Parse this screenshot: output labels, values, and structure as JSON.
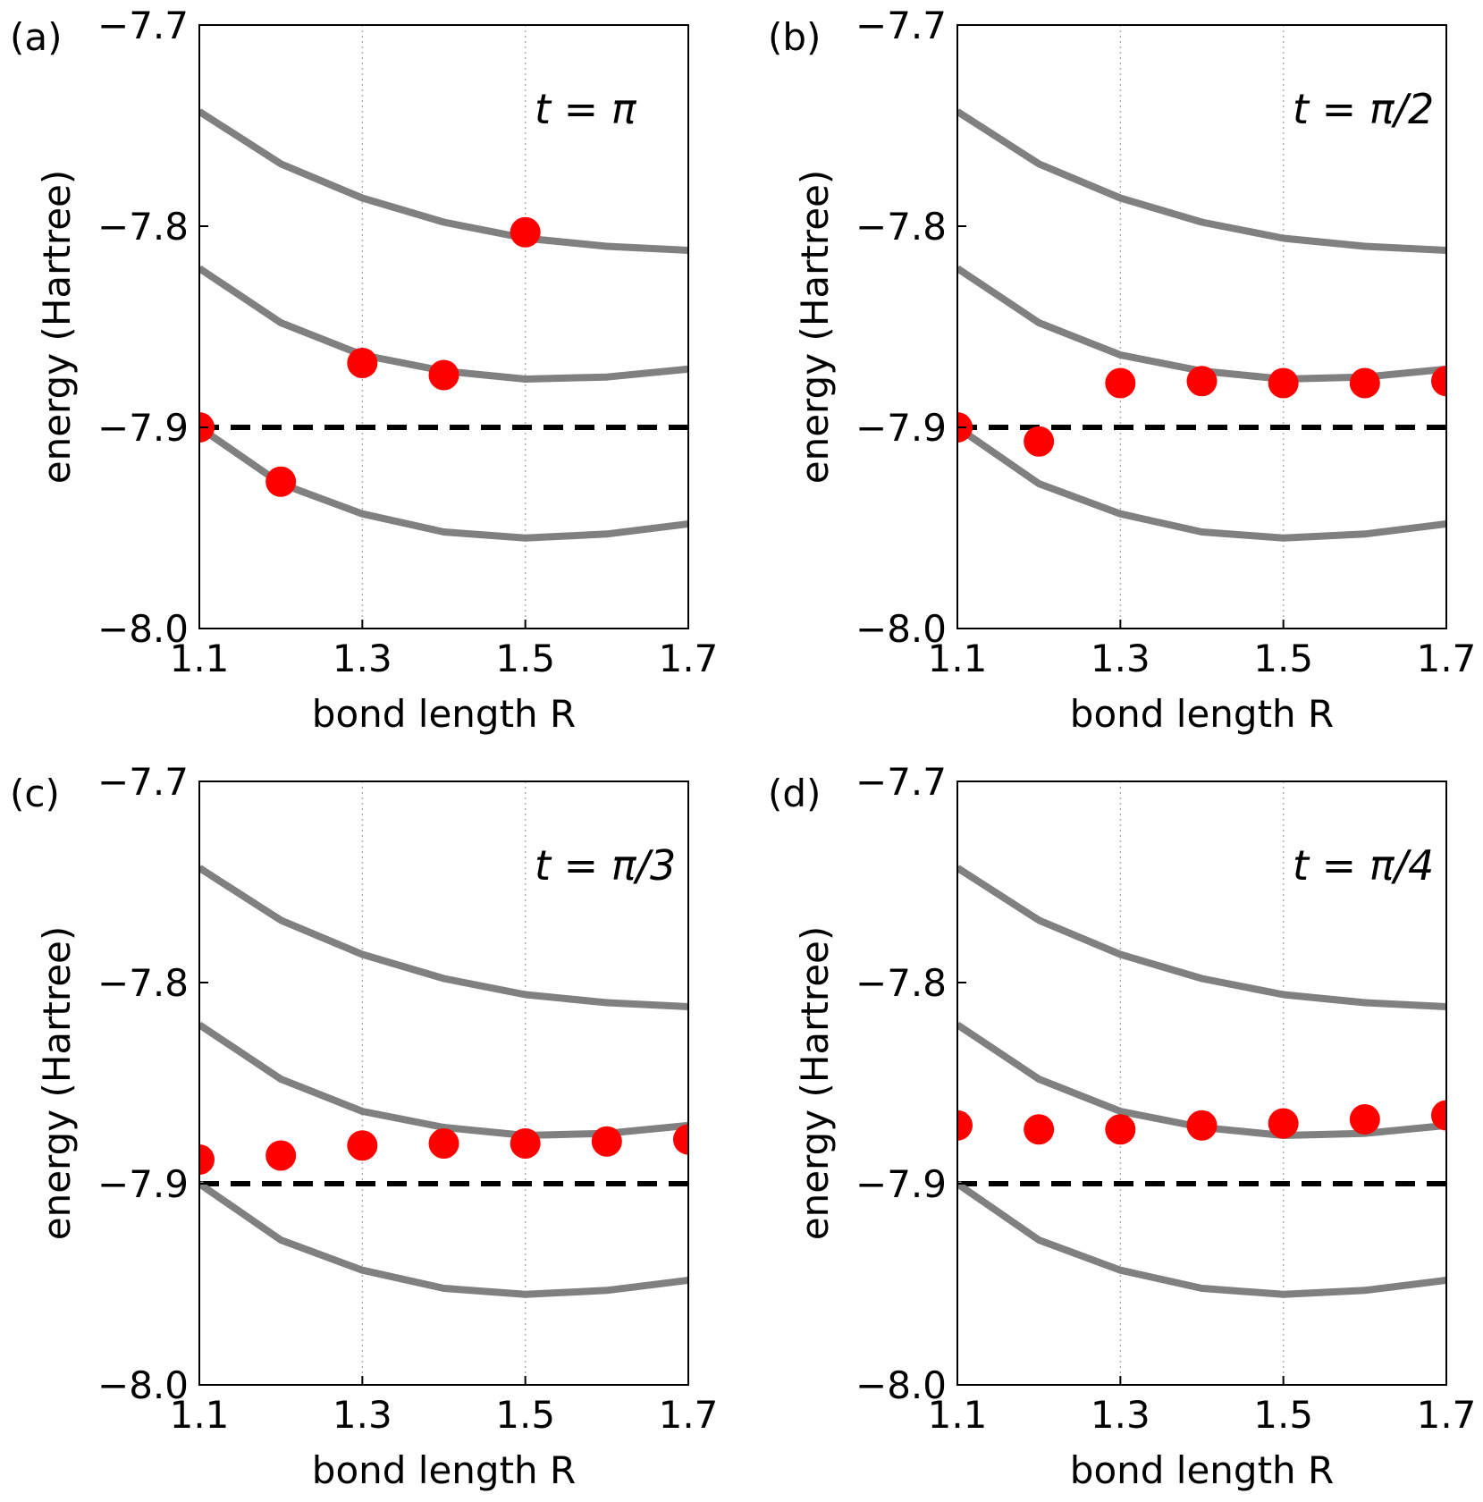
{
  "figure": {
    "colors": {
      "curve": "#808080",
      "points": "#ff0000",
      "reference": "#000000",
      "grid": "#b0b0b0"
    }
  },
  "chart_data": [
    {
      "type": "line",
      "panel_label": "(a)",
      "annotation": "t = π",
      "xlabel": "bond length R",
      "ylabel": "energy (Hartree)",
      "xlim": [
        1.1,
        1.7
      ],
      "ylim": [
        -8.0,
        -7.7
      ],
      "xticks": [
        "1.1",
        "1.3",
        "1.5",
        "1.7"
      ],
      "yticks": [
        "−7.7",
        "−7.8",
        "−7.9",
        "−8.0"
      ],
      "x_gridlines": [
        1.1,
        1.3,
        1.5,
        1.7
      ],
      "reference_line_y": -7.9,
      "x": [
        1.1,
        1.2,
        1.3,
        1.4,
        1.5,
        1.6,
        1.7
      ],
      "series": [
        {
          "values": [
            -7.743,
            -7.769,
            -7.786,
            -7.798,
            -7.806,
            -7.81,
            -7.812
          ]
        },
        {
          "values": [
            -7.821,
            -7.848,
            -7.864,
            -7.872,
            -7.876,
            -7.875,
            -7.871
          ]
        },
        {
          "values": [
            -7.9,
            -7.928,
            -7.943,
            -7.952,
            -7.955,
            -7.953,
            -7.948
          ]
        }
      ],
      "points": {
        "x": [
          1.1,
          1.2,
          1.3,
          1.4,
          1.5
        ],
        "y": [
          -7.9,
          -7.927,
          -7.868,
          -7.874,
          -7.803
        ]
      }
    },
    {
      "type": "line",
      "panel_label": "(b)",
      "annotation": "t = π/2",
      "xlabel": "bond length R",
      "ylabel": "energy (Hartree)",
      "xlim": [
        1.1,
        1.7
      ],
      "ylim": [
        -8.0,
        -7.7
      ],
      "xticks": [
        "1.1",
        "1.3",
        "1.5",
        "1.7"
      ],
      "yticks": [
        "−7.7",
        "−7.8",
        "−7.9",
        "−8.0"
      ],
      "x_gridlines": [
        1.1,
        1.3,
        1.5,
        1.7
      ],
      "reference_line_y": -7.9,
      "x": [
        1.1,
        1.2,
        1.3,
        1.4,
        1.5,
        1.6,
        1.7
      ],
      "series": [
        {
          "values": [
            -7.743,
            -7.769,
            -7.786,
            -7.798,
            -7.806,
            -7.81,
            -7.812
          ]
        },
        {
          "values": [
            -7.821,
            -7.848,
            -7.864,
            -7.872,
            -7.876,
            -7.875,
            -7.871
          ]
        },
        {
          "values": [
            -7.9,
            -7.928,
            -7.943,
            -7.952,
            -7.955,
            -7.953,
            -7.948
          ]
        }
      ],
      "points": {
        "x": [
          1.1,
          1.2,
          1.3,
          1.4,
          1.5,
          1.6,
          1.7
        ],
        "y": [
          -7.9,
          -7.907,
          -7.878,
          -7.877,
          -7.878,
          -7.878,
          -7.877
        ]
      }
    },
    {
      "type": "line",
      "panel_label": "(c)",
      "annotation": "t = π/3",
      "xlabel": "bond length R",
      "ylabel": "energy (Hartree)",
      "xlim": [
        1.1,
        1.7
      ],
      "ylim": [
        -8.0,
        -7.7
      ],
      "xticks": [
        "1.1",
        "1.3",
        "1.5",
        "1.7"
      ],
      "yticks": [
        "−7.7",
        "−7.8",
        "−7.9",
        "−8.0"
      ],
      "x_gridlines": [
        1.1,
        1.3,
        1.5,
        1.7
      ],
      "reference_line_y": -7.9,
      "x": [
        1.1,
        1.2,
        1.3,
        1.4,
        1.5,
        1.6,
        1.7
      ],
      "series": [
        {
          "values": [
            -7.743,
            -7.769,
            -7.786,
            -7.798,
            -7.806,
            -7.81,
            -7.812
          ]
        },
        {
          "values": [
            -7.821,
            -7.848,
            -7.864,
            -7.872,
            -7.876,
            -7.875,
            -7.871
          ]
        },
        {
          "values": [
            -7.9,
            -7.928,
            -7.943,
            -7.952,
            -7.955,
            -7.953,
            -7.948
          ]
        }
      ],
      "points": {
        "x": [
          1.1,
          1.2,
          1.3,
          1.4,
          1.5,
          1.6,
          1.7
        ],
        "y": [
          -7.888,
          -7.886,
          -7.881,
          -7.88,
          -7.88,
          -7.879,
          -7.878
        ]
      }
    },
    {
      "type": "line",
      "panel_label": "(d)",
      "annotation": "t = π/4",
      "xlabel": "bond length R",
      "ylabel": "energy (Hartree)",
      "xlim": [
        1.1,
        1.7
      ],
      "ylim": [
        -8.0,
        -7.7
      ],
      "xticks": [
        "1.1",
        "1.3",
        "1.5",
        "1.7"
      ],
      "yticks": [
        "−7.7",
        "−7.8",
        "−7.9",
        "−8.0"
      ],
      "x_gridlines": [
        1.1,
        1.3,
        1.5,
        1.7
      ],
      "reference_line_y": -7.9,
      "x": [
        1.1,
        1.2,
        1.3,
        1.4,
        1.5,
        1.6,
        1.7
      ],
      "series": [
        {
          "values": [
            -7.743,
            -7.769,
            -7.786,
            -7.798,
            -7.806,
            -7.81,
            -7.812
          ]
        },
        {
          "values": [
            -7.821,
            -7.848,
            -7.864,
            -7.872,
            -7.876,
            -7.875,
            -7.871
          ]
        },
        {
          "values": [
            -7.9,
            -7.928,
            -7.943,
            -7.952,
            -7.955,
            -7.953,
            -7.948
          ]
        }
      ],
      "points": {
        "x": [
          1.1,
          1.2,
          1.3,
          1.4,
          1.5,
          1.6,
          1.7
        ],
        "y": [
          -7.871,
          -7.873,
          -7.873,
          -7.871,
          -7.87,
          -7.868,
          -7.866
        ]
      }
    }
  ]
}
